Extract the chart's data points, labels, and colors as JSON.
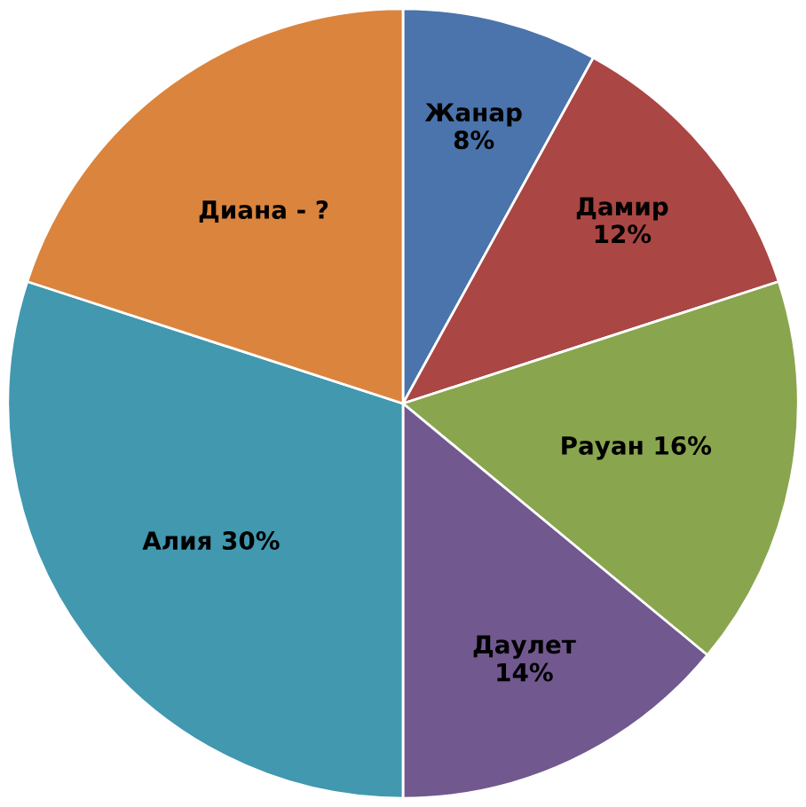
{
  "chart_data": {
    "type": "pie",
    "categories": [
      "Жанар",
      "Дамир",
      "Рауан",
      "Даулет",
      "Алия",
      "Диана -"
    ],
    "values": [
      8,
      12,
      16,
      14,
      30,
      20
    ],
    "value_labels": [
      "8%",
      "12%",
      "16%",
      "14%",
      "30%",
      "?"
    ],
    "colors": [
      "#4a74ab",
      "#aa4643",
      "#89a54e",
      "#71588f",
      "#4198af",
      "#db843d"
    ],
    "legend": false
  }
}
